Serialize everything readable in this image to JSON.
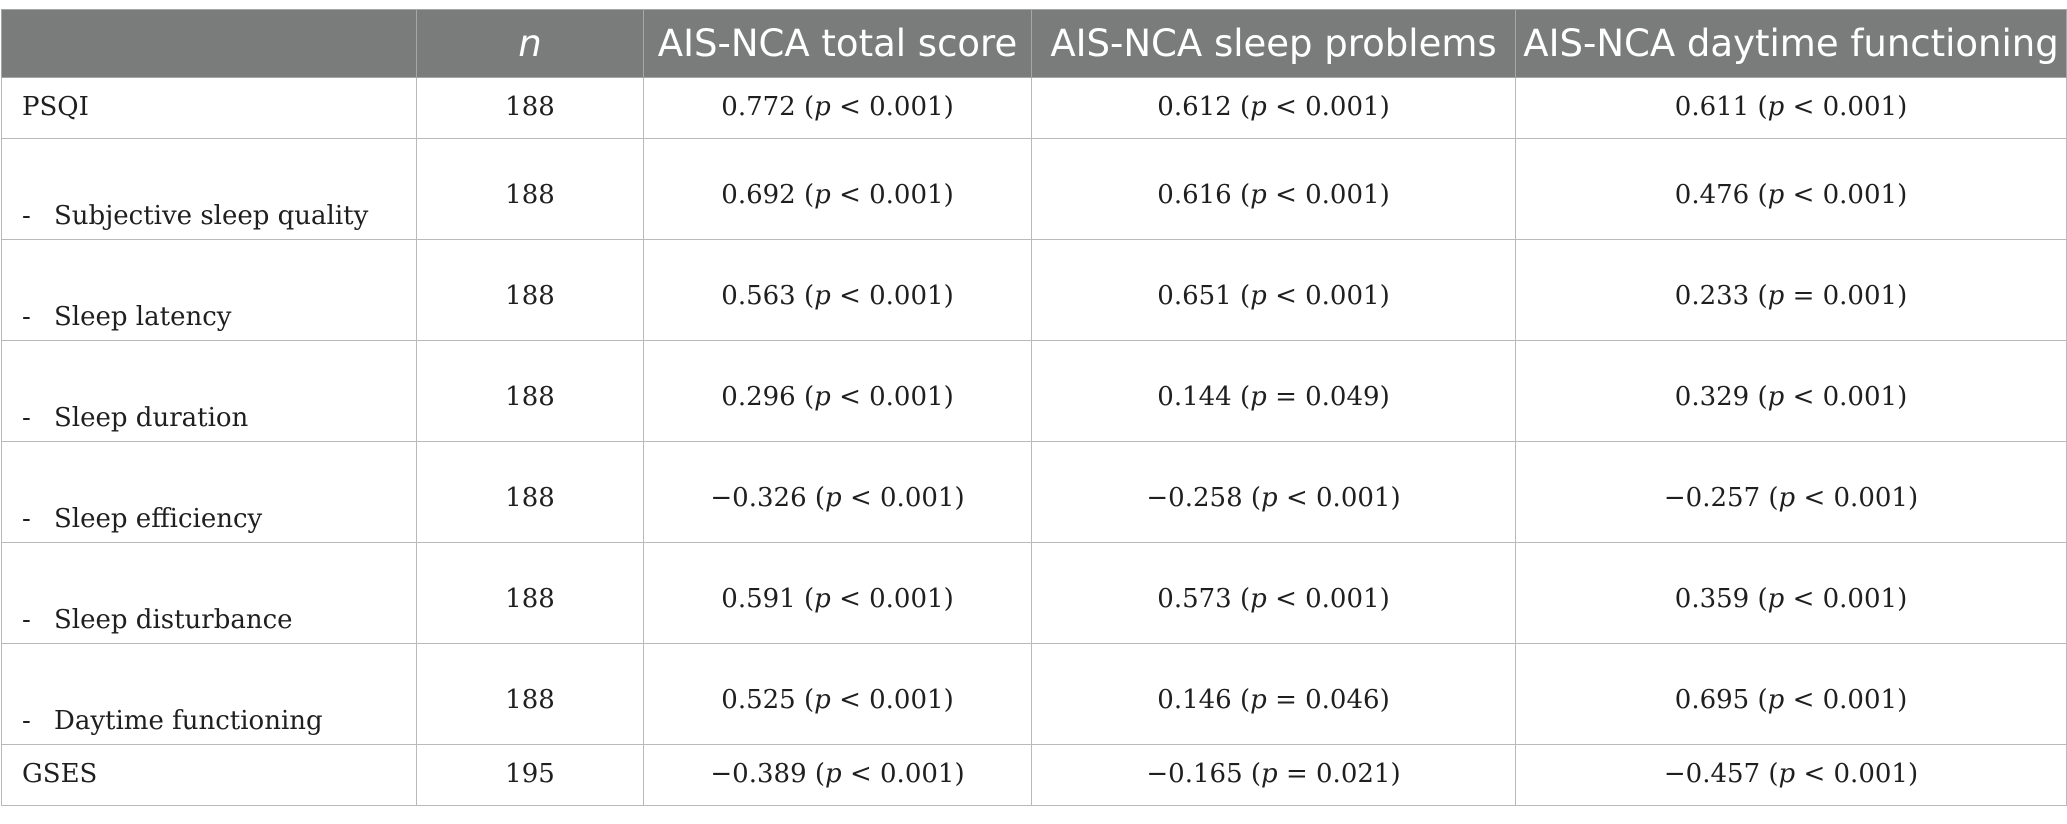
{
  "table": {
    "headers": [
      "",
      "n",
      "AIS-NCA total score",
      "AIS-NCA sleep problems",
      "AIS-NCA daytime functioning"
    ],
    "rows": [
      {
        "label": "PSQI",
        "sub": false,
        "n": "188",
        "c1": {
          "v": "0.772",
          "op": "<",
          "p": "0.001"
        },
        "c2": {
          "v": "0.612",
          "op": "<",
          "p": "0.001"
        },
        "c3": {
          "v": "0.611",
          "op": "<",
          "p": "0.001"
        }
      },
      {
        "label": "Subjective sleep quality",
        "sub": true,
        "n": "188",
        "c1": {
          "v": "0.692",
          "op": "<",
          "p": "0.001"
        },
        "c2": {
          "v": "0.616",
          "op": "<",
          "p": "0.001"
        },
        "c3": {
          "v": "0.476",
          "op": "<",
          "p": "0.001"
        }
      },
      {
        "label": "Sleep latency",
        "sub": true,
        "n": "188",
        "c1": {
          "v": "0.563",
          "op": "<",
          "p": "0.001"
        },
        "c2": {
          "v": "0.651",
          "op": "<",
          "p": "0.001"
        },
        "c3": {
          "v": "0.233",
          "op": "=",
          "p": "0.001"
        }
      },
      {
        "label": "Sleep duration",
        "sub": true,
        "n": "188",
        "c1": {
          "v": "0.296",
          "op": "<",
          "p": "0.001"
        },
        "c2": {
          "v": "0.144",
          "op": "=",
          "p": "0.049"
        },
        "c3": {
          "v": "0.329",
          "op": "<",
          "p": "0.001"
        }
      },
      {
        "label": "Sleep efficiency",
        "sub": true,
        "n": "188",
        "c1": {
          "v": "−0.326",
          "op": "<",
          "p": "0.001"
        },
        "c2": {
          "v": "−0.258",
          "op": "<",
          "p": "0.001"
        },
        "c3": {
          "v": "−0.257",
          "op": "<",
          "p": "0.001"
        }
      },
      {
        "label": "Sleep disturbance",
        "sub": true,
        "n": "188",
        "c1": {
          "v": "0.591",
          "op": "<",
          "p": "0.001"
        },
        "c2": {
          "v": "0.573",
          "op": "<",
          "p": "0.001"
        },
        "c3": {
          "v": "0.359",
          "op": "<",
          "p": "0.001"
        }
      },
      {
        "label": "Daytime functioning",
        "sub": true,
        "n": "188",
        "c1": {
          "v": "0.525",
          "op": "<",
          "p": "0.001"
        },
        "c2": {
          "v": "0.146",
          "op": "=",
          "p": "0.046"
        },
        "c3": {
          "v": "0.695",
          "op": "<",
          "p": "0.001"
        }
      },
      {
        "label": "GSES",
        "sub": false,
        "n": "195",
        "c1": {
          "v": "−0.389",
          "op": "<",
          "p": "0.001"
        },
        "c2": {
          "v": "−0.165",
          "op": "=",
          "p": "0.021"
        },
        "c3": {
          "v": "−0.457",
          "op": "<",
          "p": "0.001"
        }
      }
    ]
  },
  "p_symbol": "p",
  "dash_symbol": "-"
}
